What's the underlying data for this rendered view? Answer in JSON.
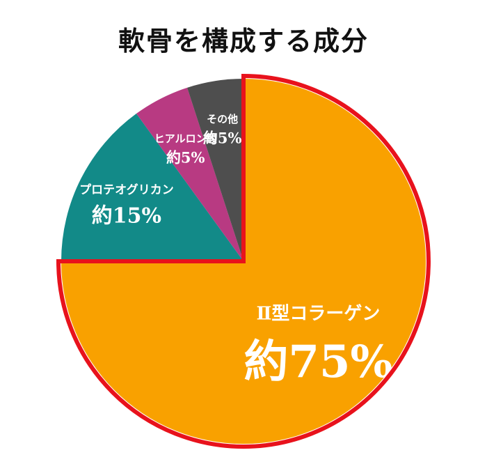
{
  "title": "軟骨を構成する成分",
  "chart_data": {
    "type": "pie",
    "title": "軟骨を構成する成分",
    "slices": [
      {
        "label": "Ⅱ型コラーゲン",
        "value_label": "約75%",
        "value": 75,
        "color": "#F9A100"
      },
      {
        "label": "プロテオグリカン",
        "value_label": "約15%",
        "value": 15,
        "color": "#128A88"
      },
      {
        "label": "ヒアルロン酸",
        "value_label": "約5%",
        "value": 5,
        "color": "#B83A82"
      },
      {
        "label": "その他",
        "value_label": "約5%",
        "value": 5,
        "color": "#4E4E4E"
      }
    ],
    "highlight": {
      "slices": [
        "Ⅱ型コラーゲン"
      ],
      "outline_color": "#E8121C"
    }
  }
}
